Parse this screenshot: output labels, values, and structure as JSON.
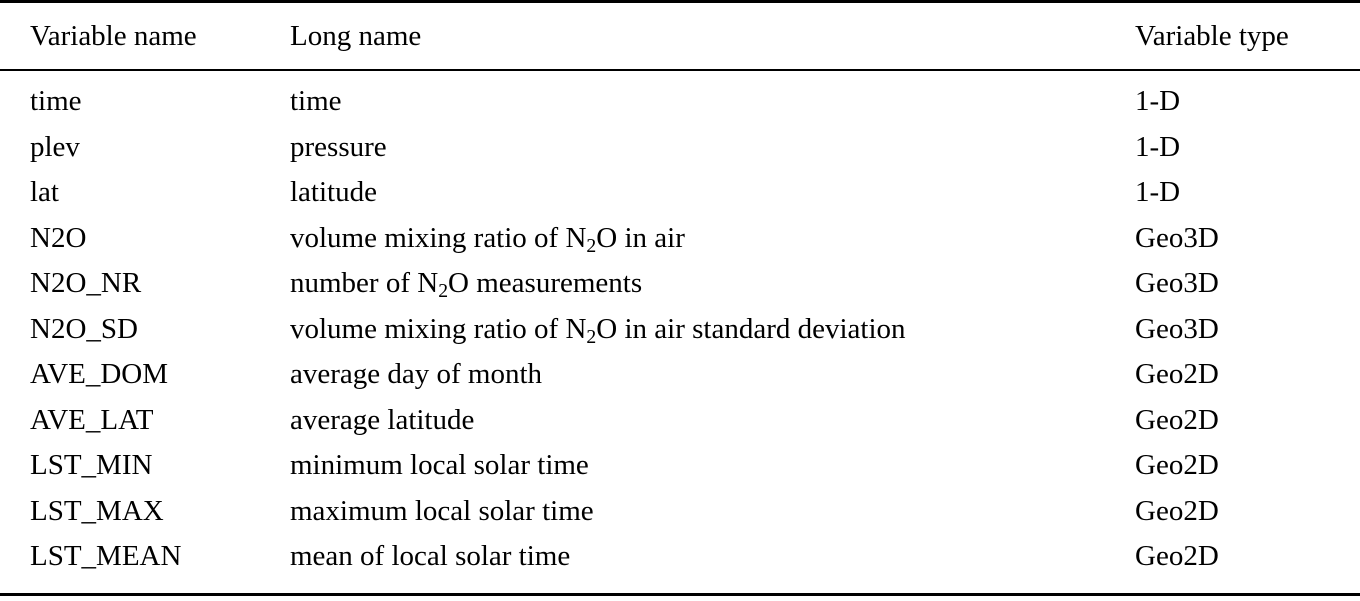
{
  "table": {
    "background": "#ffffff",
    "text_color": "#000000",
    "rule_color": "#000000",
    "headers": {
      "variable_name": "Variable name",
      "long_name": "Long name",
      "variable_type": "Variable type"
    },
    "rows": [
      {
        "name": "time",
        "long_pre": "time",
        "type": "1-D"
      },
      {
        "name": "plev",
        "long_pre": "pressure",
        "type": "1-D"
      },
      {
        "name": "lat",
        "long_pre": "latitude",
        "type": "1-D"
      },
      {
        "name": "N2O",
        "long_pre": "volume mixing ratio of N",
        "long_sub": "2",
        "long_post": "O in air",
        "type": "Geo3D"
      },
      {
        "name": "N2O_NR",
        "long_pre": "number of N",
        "long_sub": "2",
        "long_post": "O measurements",
        "type": "Geo3D"
      },
      {
        "name": "N2O_SD",
        "long_pre": "volume mixing ratio of N",
        "long_sub": "2",
        "long_post": "O in air standard deviation",
        "type": "Geo3D"
      },
      {
        "name": "AVE_DOM",
        "long_pre": "average day of month",
        "type": "Geo2D"
      },
      {
        "name": "AVE_LAT",
        "long_pre": "average latitude",
        "type": "Geo2D"
      },
      {
        "name": "LST_MIN",
        "long_pre": "minimum local solar time",
        "type": "Geo2D"
      },
      {
        "name": "LST_MAX",
        "long_pre": "maximum local solar time",
        "type": "Geo2D"
      },
      {
        "name": "LST_MEAN",
        "long_pre": "mean of local solar time",
        "type": "Geo2D"
      }
    ]
  }
}
